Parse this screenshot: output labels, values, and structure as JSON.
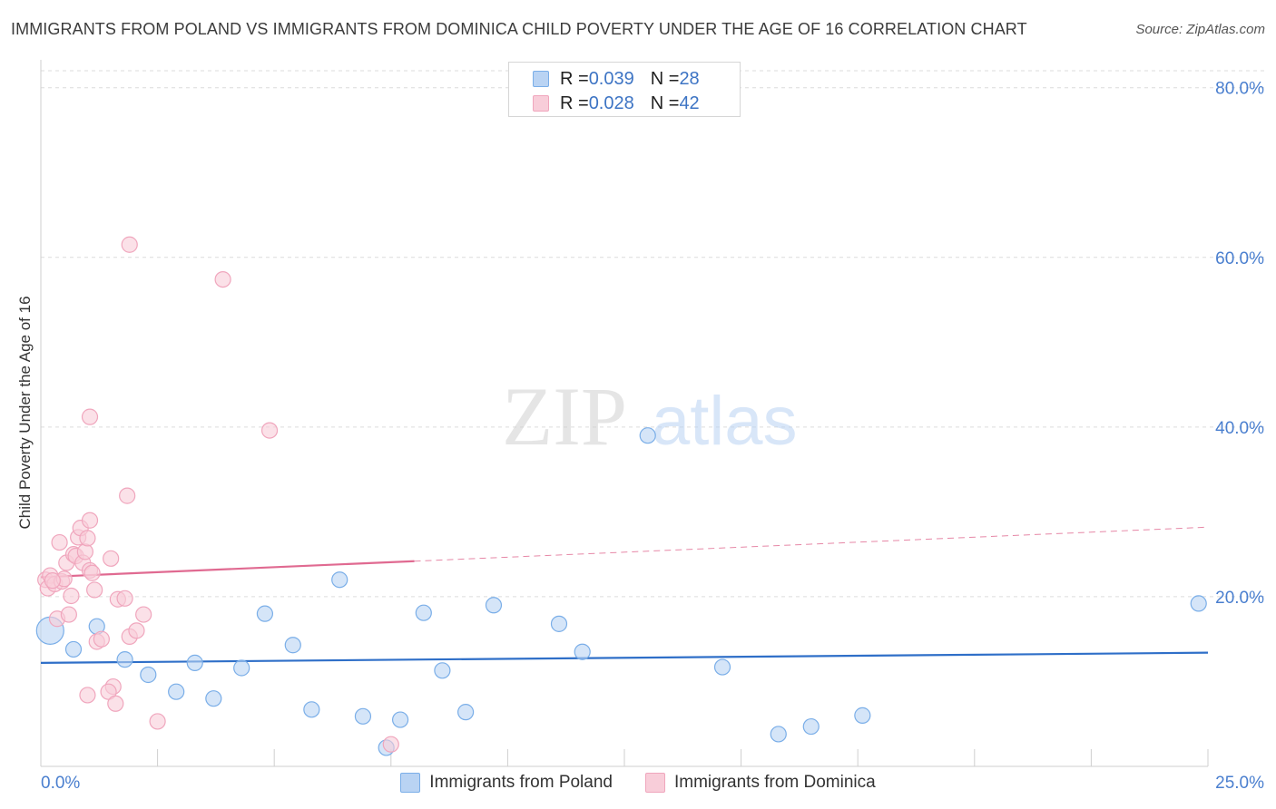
{
  "chart_data": {
    "type": "scatter",
    "title": "IMMIGRANTS FROM POLAND VS IMMIGRANTS FROM DOMINICA CHILD POVERTY UNDER THE AGE OF 16 CORRELATION CHART",
    "source": "Source: ZipAtlas.com",
    "watermark": {
      "part1": "ZIP",
      "part2": "atlas"
    },
    "xlabel": "",
    "ylabel": "Child Poverty Under the Age of 16",
    "xlim": [
      0,
      25
    ],
    "ylim": [
      0,
      82
    ],
    "x_tick_labels": {
      "min": "0.0%",
      "max": "25.0%"
    },
    "y_ticks": [
      {
        "value": 20,
        "label": "20.0%"
      },
      {
        "value": 40,
        "label": "40.0%"
      },
      {
        "value": 60,
        "label": "60.0%"
      },
      {
        "value": 80,
        "label": "80.0%"
      }
    ],
    "legend": [
      {
        "r_label": "R = ",
        "r_value": "0.039",
        "n_label": "N = ",
        "n_value": "28"
      },
      {
        "r_label": "R = ",
        "r_value": "0.028",
        "n_label": "N = ",
        "n_value": "42"
      }
    ],
    "series": [
      {
        "name": "Immigrants from Poland",
        "color": "#7aaee8",
        "fill": "#b9d3f3",
        "line_color": "#2f6fc8",
        "trend": {
          "x0": 0,
          "y0": 12.2,
          "x1": 25,
          "y1": 13.4,
          "x_solid_end": 25
        },
        "points": [
          {
            "x": 0.2,
            "y": 16.0,
            "big": true
          },
          {
            "x": 0.7,
            "y": 13.8
          },
          {
            "x": 1.2,
            "y": 16.5
          },
          {
            "x": 1.8,
            "y": 12.6
          },
          {
            "x": 2.3,
            "y": 10.8
          },
          {
            "x": 2.9,
            "y": 8.8
          },
          {
            "x": 3.3,
            "y": 12.2
          },
          {
            "x": 3.7,
            "y": 8.0
          },
          {
            "x": 4.3,
            "y": 11.6
          },
          {
            "x": 4.8,
            "y": 18.0
          },
          {
            "x": 5.4,
            "y": 14.3
          },
          {
            "x": 5.8,
            "y": 6.7
          },
          {
            "x": 6.4,
            "y": 22.0
          },
          {
            "x": 6.9,
            "y": 5.9
          },
          {
            "x": 7.7,
            "y": 5.5
          },
          {
            "x": 8.2,
            "y": 18.1
          },
          {
            "x": 8.6,
            "y": 11.3
          },
          {
            "x": 9.1,
            "y": 6.4
          },
          {
            "x": 9.7,
            "y": 19.0
          },
          {
            "x": 11.1,
            "y": 16.8
          },
          {
            "x": 11.6,
            "y": 13.5
          },
          {
            "x": 13.0,
            "y": 39.0
          },
          {
            "x": 14.6,
            "y": 11.7
          },
          {
            "x": 15.8,
            "y": 3.8
          },
          {
            "x": 16.5,
            "y": 4.7
          },
          {
            "x": 17.6,
            "y": 6.0
          },
          {
            "x": 24.8,
            "y": 19.2
          },
          {
            "x": 7.4,
            "y": 2.2
          }
        ]
      },
      {
        "name": "Immigrants from Dominica",
        "color": "#f0a6bd",
        "fill": "#f8cdd9",
        "line_color": "#e06a91",
        "trend": {
          "x0": 0,
          "y0": 22.3,
          "x1": 25,
          "y1": 28.2,
          "x_solid_end": 8.0
        },
        "points": [
          {
            "x": 0.1,
            "y": 22.0
          },
          {
            "x": 0.15,
            "y": 21.0
          },
          {
            "x": 0.2,
            "y": 22.5
          },
          {
            "x": 0.3,
            "y": 21.5
          },
          {
            "x": 0.35,
            "y": 17.4
          },
          {
            "x": 0.4,
            "y": 26.4
          },
          {
            "x": 0.45,
            "y": 21.8
          },
          {
            "x": 0.5,
            "y": 22.1
          },
          {
            "x": 0.55,
            "y": 24.0
          },
          {
            "x": 0.6,
            "y": 17.9
          },
          {
            "x": 0.65,
            "y": 20.1
          },
          {
            "x": 0.7,
            "y": 25.0
          },
          {
            "x": 0.75,
            "y": 24.8
          },
          {
            "x": 0.8,
            "y": 27.0
          },
          {
            "x": 0.85,
            "y": 28.1
          },
          {
            "x": 0.9,
            "y": 24.0
          },
          {
            "x": 0.95,
            "y": 25.3
          },
          {
            "x": 1.0,
            "y": 26.9
          },
          {
            "x": 1.05,
            "y": 23.1
          },
          {
            "x": 1.1,
            "y": 22.8
          },
          {
            "x": 1.15,
            "y": 20.8
          },
          {
            "x": 1.2,
            "y": 14.7
          },
          {
            "x": 1.0,
            "y": 8.4
          },
          {
            "x": 1.3,
            "y": 15.0
          },
          {
            "x": 1.05,
            "y": 41.2
          },
          {
            "x": 1.05,
            "y": 29.0
          },
          {
            "x": 1.55,
            "y": 9.4
          },
          {
            "x": 1.45,
            "y": 8.8
          },
          {
            "x": 1.6,
            "y": 7.4
          },
          {
            "x": 1.65,
            "y": 19.7
          },
          {
            "x": 1.8,
            "y": 19.8
          },
          {
            "x": 1.9,
            "y": 15.3
          },
          {
            "x": 1.85,
            "y": 31.9
          },
          {
            "x": 2.05,
            "y": 16.0
          },
          {
            "x": 2.2,
            "y": 17.9
          },
          {
            "x": 2.5,
            "y": 5.3
          },
          {
            "x": 1.9,
            "y": 61.5
          },
          {
            "x": 3.9,
            "y": 57.4
          },
          {
            "x": 4.9,
            "y": 39.6
          },
          {
            "x": 7.5,
            "y": 2.6
          },
          {
            "x": 1.5,
            "y": 24.5
          },
          {
            "x": 0.25,
            "y": 21.9
          }
        ]
      }
    ]
  }
}
